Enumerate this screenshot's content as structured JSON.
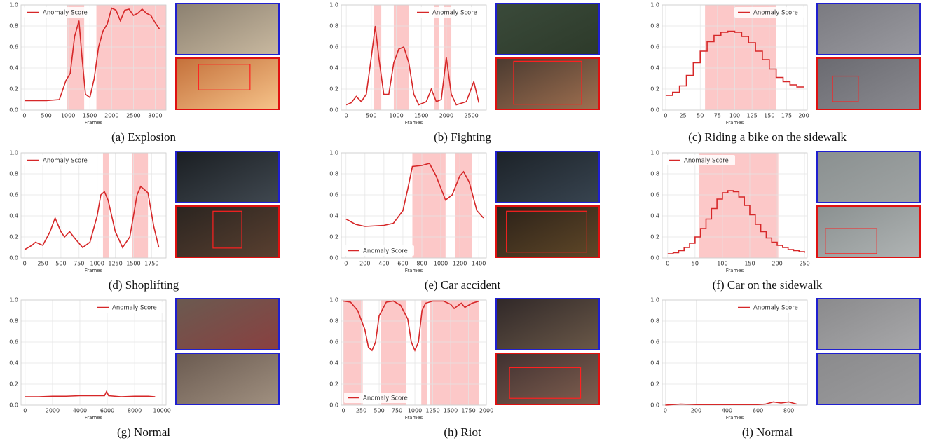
{
  "chart_data": [
    {
      "type": "line",
      "title": "(a) Explosion",
      "xlabel": "Frames",
      "xlim": [
        -80,
        3250
      ],
      "ylim": [
        0,
        1
      ],
      "xticks": [
        0,
        500,
        1000,
        1500,
        2000,
        2500,
        3000
      ],
      "yticks": [
        {
          "value": 0,
          "label": "0.0"
        },
        {
          "value": 0.2,
          "label": "0.2"
        },
        {
          "value": 0.4,
          "label": "0.4"
        },
        {
          "value": 0.6,
          "label": "0.6"
        },
        {
          "value": 0.8,
          "label": "0.8"
        },
        {
          "value": 1,
          "label": "1.0"
        }
      ],
      "grid": true,
      "legend": "upper left",
      "step": false,
      "x": [
        0,
        500,
        800,
        950,
        1050,
        1150,
        1250,
        1320,
        1400,
        1500,
        1600,
        1700,
        1800,
        1900,
        2000,
        2100,
        2200,
        2300,
        2400,
        2500,
        2600,
        2700,
        2800,
        2900,
        3000,
        3100
      ],
      "series": [
        {
          "name": "Anomaly Score",
          "color": "#d62728",
          "values": [
            0.09,
            0.09,
            0.1,
            0.28,
            0.35,
            0.7,
            0.85,
            0.5,
            0.15,
            0.12,
            0.3,
            0.6,
            0.75,
            0.82,
            0.97,
            0.95,
            0.85,
            0.95,
            0.96,
            0.9,
            0.92,
            0.96,
            0.92,
            0.9,
            0.83,
            0.77
          ]
        }
      ],
      "shaded": [
        [
          970,
          1370
        ],
        [
          1650,
          3250
        ]
      ]
    },
    {
      "type": "line",
      "title": "(b) Fighting",
      "xlabel": "Frames",
      "xlim": [
        -100,
        2800
      ],
      "ylim": [
        0,
        1
      ],
      "xticks": [
        0,
        500,
        1000,
        1500,
        2000,
        2500
      ],
      "yticks": [
        {
          "value": 0,
          "label": "0.0"
        },
        {
          "value": 0.2,
          "label": "0.2"
        },
        {
          "value": 0.4,
          "label": "0.4"
        },
        {
          "value": 0.6,
          "label": "0.6"
        },
        {
          "value": 0.8,
          "label": "0.8"
        },
        {
          "value": 1,
          "label": "1.0"
        }
      ],
      "grid": true,
      "legend": "upper right",
      "step": false,
      "x": [
        0,
        100,
        200,
        300,
        400,
        500,
        580,
        650,
        750,
        850,
        950,
        1050,
        1150,
        1250,
        1350,
        1450,
        1600,
        1700,
        1800,
        1900,
        2000,
        2100,
        2200,
        2400,
        2550,
        2650
      ],
      "series": [
        {
          "name": "Anomaly Score",
          "color": "#d62728",
          "values": [
            0.05,
            0.07,
            0.13,
            0.08,
            0.15,
            0.5,
            0.8,
            0.5,
            0.15,
            0.15,
            0.45,
            0.58,
            0.6,
            0.45,
            0.15,
            0.05,
            0.08,
            0.2,
            0.08,
            0.1,
            0.5,
            0.15,
            0.05,
            0.08,
            0.27,
            0.07
          ]
        }
      ],
      "shaded": [
        [
          550,
          700
        ],
        [
          950,
          1250
        ],
        [
          1750,
          1850
        ],
        [
          1950,
          2100
        ]
      ]
    },
    {
      "type": "line",
      "title": "(c) Riding a bike on the sidewalk",
      "xlabel": "Frames",
      "xlim": [
        -5,
        205
      ],
      "ylim": [
        0,
        1
      ],
      "xticks": [
        0,
        25,
        50,
        75,
        100,
        125,
        150,
        175,
        200
      ],
      "yticks": [
        {
          "value": 0,
          "label": "0.0"
        },
        {
          "value": 0.2,
          "label": "0.2"
        },
        {
          "value": 0.4,
          "label": "0.4"
        },
        {
          "value": 0.6,
          "label": "0.6"
        },
        {
          "value": 0.8,
          "label": "0.8"
        },
        {
          "value": 1,
          "label": "1.0"
        }
      ],
      "grid": true,
      "legend": "upper right",
      "step": true,
      "x": [
        0,
        10,
        20,
        30,
        40,
        50,
        60,
        70,
        80,
        90,
        100,
        110,
        120,
        130,
        140,
        150,
        160,
        170,
        180,
        190,
        200
      ],
      "series": [
        {
          "name": "Anomaly Score",
          "color": "#d62728",
          "values": [
            0.14,
            0.17,
            0.23,
            0.33,
            0.45,
            0.56,
            0.65,
            0.71,
            0.74,
            0.75,
            0.74,
            0.7,
            0.64,
            0.56,
            0.48,
            0.39,
            0.31,
            0.27,
            0.24,
            0.22,
            0.22
          ]
        }
      ],
      "shaded": [
        [
          57,
          160
        ]
      ]
    },
    {
      "type": "line",
      "title": "(d) Shoplifting",
      "xlabel": "Frames",
      "xlim": [
        -50,
        1950
      ],
      "ylim": [
        0,
        1
      ],
      "xticks": [
        0,
        250,
        500,
        750,
        1000,
        1250,
        1500,
        1750
      ],
      "yticks": [
        {
          "value": 0,
          "label": "0.0"
        },
        {
          "value": 0.2,
          "label": "0.2"
        },
        {
          "value": 0.4,
          "label": "0.4"
        },
        {
          "value": 0.6,
          "label": "0.6"
        },
        {
          "value": 0.8,
          "label": "0.8"
        },
        {
          "value": 1,
          "label": "1.0"
        }
      ],
      "grid": true,
      "legend": "upper left",
      "step": false,
      "x": [
        0,
        100,
        150,
        250,
        350,
        420,
        500,
        550,
        620,
        700,
        800,
        900,
        1000,
        1050,
        1100,
        1150,
        1250,
        1350,
        1450,
        1550,
        1600,
        1700,
        1780,
        1850
      ],
      "series": [
        {
          "name": "Anomaly Score",
          "color": "#d62728",
          "values": [
            0.08,
            0.12,
            0.15,
            0.12,
            0.25,
            0.38,
            0.25,
            0.2,
            0.25,
            0.18,
            0.1,
            0.15,
            0.4,
            0.6,
            0.63,
            0.55,
            0.25,
            0.1,
            0.2,
            0.6,
            0.68,
            0.62,
            0.3,
            0.1
          ]
        }
      ],
      "shaded": [
        [
          1080,
          1160
        ],
        [
          1480,
          1700
        ]
      ]
    },
    {
      "type": "line",
      "title": "(e) Car accident",
      "xlabel": "Frames",
      "xlim": [
        -50,
        1480
      ],
      "ylim": [
        0,
        1
      ],
      "xticks": [
        0,
        200,
        400,
        600,
        800,
        1000,
        1200,
        1400
      ],
      "yticks": [
        {
          "value": 0,
          "label": "0.0"
        },
        {
          "value": 0.2,
          "label": "0.2"
        },
        {
          "value": 0.4,
          "label": "0.4"
        },
        {
          "value": 0.6,
          "label": "0.6"
        },
        {
          "value": 0.8,
          "label": "0.8"
        },
        {
          "value": 1,
          "label": "1.0"
        }
      ],
      "grid": true,
      "legend": "lower left",
      "step": false,
      "x": [
        0,
        100,
        200,
        400,
        500,
        600,
        650,
        700,
        800,
        880,
        950,
        1050,
        1120,
        1200,
        1240,
        1300,
        1380,
        1450
      ],
      "series": [
        {
          "name": "Anomaly Score",
          "color": "#d62728",
          "values": [
            0.37,
            0.32,
            0.3,
            0.31,
            0.33,
            0.45,
            0.65,
            0.87,
            0.88,
            0.9,
            0.78,
            0.55,
            0.6,
            0.78,
            0.82,
            0.72,
            0.45,
            0.38
          ]
        }
      ],
      "shaded": [
        [
          700,
          1050
        ],
        [
          1150,
          1330
        ]
      ]
    },
    {
      "type": "line",
      "title": "(f) Car on the sidewalk",
      "xlabel": "Frames",
      "xlim": [
        -10,
        255
      ],
      "ylim": [
        0,
        1
      ],
      "xticks": [
        0,
        50,
        100,
        150,
        200,
        250
      ],
      "yticks": [
        {
          "value": 0,
          "label": "0.0"
        },
        {
          "value": 0.2,
          "label": "0.2"
        },
        {
          "value": 0.4,
          "label": "0.4"
        },
        {
          "value": 0.6,
          "label": "0.6"
        },
        {
          "value": 0.8,
          "label": "0.8"
        },
        {
          "value": 1,
          "label": "1.0"
        }
      ],
      "grid": true,
      "legend": "upper left",
      "step": true,
      "x": [
        0,
        10,
        20,
        30,
        40,
        50,
        60,
        70,
        80,
        90,
        100,
        110,
        120,
        130,
        140,
        150,
        160,
        170,
        180,
        190,
        200,
        210,
        220,
        230,
        240,
        250
      ],
      "series": [
        {
          "name": "Anomaly Score",
          "color": "#d62728",
          "values": [
            0.04,
            0.05,
            0.07,
            0.1,
            0.14,
            0.2,
            0.28,
            0.37,
            0.47,
            0.56,
            0.62,
            0.64,
            0.63,
            0.58,
            0.5,
            0.41,
            0.32,
            0.25,
            0.19,
            0.15,
            0.12,
            0.1,
            0.08,
            0.07,
            0.06,
            0.05
          ]
        }
      ],
      "shaded": [
        [
          57,
          202
        ]
      ]
    },
    {
      "type": "line",
      "title": "(g) Normal",
      "xlabel": "Frames",
      "xlim": [
        -300,
        10300
      ],
      "ylim": [
        0,
        1
      ],
      "xticks": [
        0,
        2000,
        4000,
        6000,
        8000,
        10000
      ],
      "yticks": [
        {
          "value": 0,
          "label": "0.0"
        },
        {
          "value": 0.2,
          "label": "0.2"
        },
        {
          "value": 0.4,
          "label": "0.4"
        },
        {
          "value": 0.6,
          "label": "0.6"
        },
        {
          "value": 0.8,
          "label": "0.8"
        },
        {
          "value": 1,
          "label": "1.0"
        }
      ],
      "grid": true,
      "legend": "upper right",
      "step": false,
      "x": [
        0,
        1000,
        2000,
        3000,
        4000,
        5000,
        5800,
        5950,
        6100,
        7000,
        8000,
        9000,
        9500
      ],
      "series": [
        {
          "name": "Anomaly Score",
          "color": "#d62728",
          "values": [
            0.08,
            0.08,
            0.085,
            0.085,
            0.09,
            0.09,
            0.09,
            0.13,
            0.09,
            0.08,
            0.085,
            0.085,
            0.08
          ]
        }
      ],
      "shaded": []
    },
    {
      "type": "line",
      "title": "(h) Riot",
      "xlabel": "Frames",
      "xlim": [
        -30,
        2000
      ],
      "ylim": [
        0,
        1
      ],
      "xticks": [
        0,
        250,
        500,
        750,
        1000,
        1250,
        1500,
        1750,
        2000
      ],
      "yticks": [
        {
          "value": 0,
          "label": "0.0"
        },
        {
          "value": 0.2,
          "label": "0.2"
        },
        {
          "value": 0.4,
          "label": "0.4"
        },
        {
          "value": 0.6,
          "label": "0.6"
        },
        {
          "value": 0.8,
          "label": "0.8"
        },
        {
          "value": 1,
          "label": "1.0"
        }
      ],
      "grid": true,
      "legend": "lower left",
      "step": false,
      "x": [
        0,
        100,
        200,
        300,
        350,
        400,
        450,
        500,
        600,
        700,
        800,
        900,
        950,
        1000,
        1050,
        1100,
        1150,
        1250,
        1400,
        1500,
        1550,
        1650,
        1700,
        1800,
        1900
      ],
      "series": [
        {
          "name": "Anomaly Score",
          "color": "#d62728",
          "values": [
            0.99,
            0.98,
            0.9,
            0.72,
            0.55,
            0.52,
            0.6,
            0.85,
            0.98,
            0.99,
            0.95,
            0.82,
            0.6,
            0.52,
            0.6,
            0.9,
            0.97,
            0.99,
            0.99,
            0.96,
            0.92,
            0.97,
            0.93,
            0.97,
            0.99
          ]
        }
      ],
      "shaded": [
        [
          0,
          270
        ],
        [
          520,
          880
        ],
        [
          1090,
          1170
        ],
        [
          1210,
          1900
        ]
      ]
    },
    {
      "type": "line",
      "title": "(i) Normal",
      "xlabel": "Frames",
      "xlim": [
        -20,
        920
      ],
      "ylim": [
        0,
        1
      ],
      "xticks": [
        0,
        200,
        400,
        600,
        800
      ],
      "yticks": [
        {
          "value": 0,
          "label": "0.0"
        },
        {
          "value": 0.2,
          "label": "0.2"
        },
        {
          "value": 0.4,
          "label": "0.4"
        },
        {
          "value": 0.6,
          "label": "0.6"
        },
        {
          "value": 0.8,
          "label": "0.8"
        },
        {
          "value": 1,
          "label": "1.0"
        }
      ],
      "grid": true,
      "legend": "upper right",
      "step": false,
      "x": [
        0,
        50,
        100,
        200,
        400,
        600,
        650,
        700,
        750,
        800,
        850
      ],
      "series": [
        {
          "name": "Anomaly Score",
          "color": "#d62728",
          "values": [
            0,
            0.005,
            0.01,
            0.005,
            0.005,
            0.005,
            0.01,
            0.03,
            0.02,
            0.03,
            0.01
          ]
        }
      ],
      "shaded": []
    }
  ]
}
